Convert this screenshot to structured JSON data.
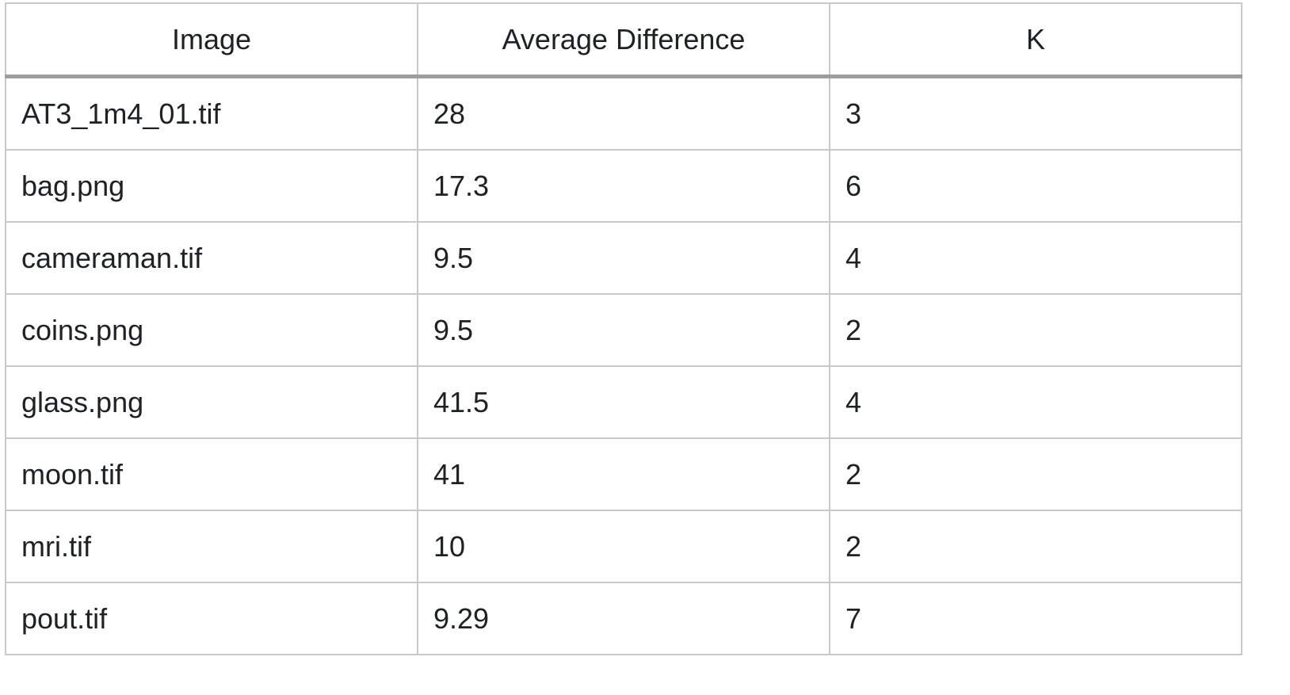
{
  "table": {
    "headers": [
      "Image",
      "Average Difference",
      "K"
    ],
    "rows": [
      [
        "AT3_1m4_01.tif",
        "28",
        "3"
      ],
      [
        "bag.png",
        "17.3",
        "6"
      ],
      [
        "cameraman.tif",
        "9.5",
        "4"
      ],
      [
        "coins.png",
        "9.5",
        "2"
      ],
      [
        "glass.png",
        "41.5",
        "4"
      ],
      [
        "moon.tif",
        "41",
        "2"
      ],
      [
        "mri.tif",
        "10",
        "2"
      ],
      [
        "pout.tif",
        "9.29",
        "7"
      ]
    ]
  }
}
